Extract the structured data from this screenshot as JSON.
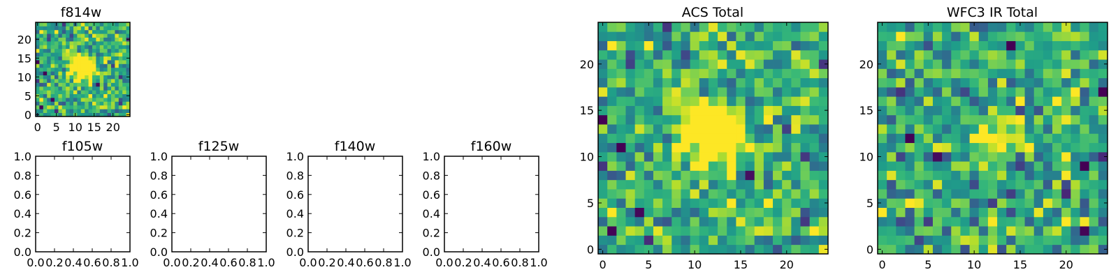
{
  "chart_data": [
    {
      "id": "f814w",
      "type": "heatmap",
      "title": "f814w",
      "xlim": [
        -0.5,
        24.5
      ],
      "ylim": [
        -0.5,
        24.5
      ],
      "xticks": [
        0,
        5,
        10,
        15,
        20
      ],
      "yticks": [
        0,
        5,
        10,
        15,
        20
      ],
      "xtick_labels": [
        "0",
        "5",
        "10",
        "15",
        "20"
      ],
      "ytick_labels": [
        "0",
        "5",
        "10",
        "15",
        "20"
      ],
      "grid_size": 25,
      "colormap": "viridis",
      "seed": 11,
      "source_center": [
        12,
        12.5
      ],
      "source_radius": 2.3,
      "source_amplitude": 1.0
    },
    {
      "id": "f105w",
      "type": "empty",
      "title": "f105w",
      "xlim": [
        0,
        1
      ],
      "ylim": [
        0,
        1
      ],
      "xticks": [
        0,
        0.2,
        0.4,
        0.6,
        0.8,
        1.0
      ],
      "yticks": [
        0,
        0.2,
        0.4,
        0.6,
        0.8,
        1.0
      ],
      "xtick_labels": [
        "0.0",
        "0.2",
        "0.4",
        "0.6",
        "0.8",
        "1.0"
      ],
      "ytick_labels": [
        "0.0",
        "0.2",
        "0.4",
        "0.6",
        "0.8",
        "1.0"
      ]
    },
    {
      "id": "f125w",
      "type": "empty",
      "title": "f125w",
      "xlim": [
        0,
        1
      ],
      "ylim": [
        0,
        1
      ],
      "xticks": [
        0,
        0.2,
        0.4,
        0.6,
        0.8,
        1.0
      ],
      "yticks": [
        0,
        0.2,
        0.4,
        0.6,
        0.8,
        1.0
      ],
      "xtick_labels": [
        "0.0",
        "0.2",
        "0.4",
        "0.6",
        "0.8",
        "1.0"
      ],
      "ytick_labels": [
        "0.0",
        "0.2",
        "0.4",
        "0.6",
        "0.8",
        "1.0"
      ]
    },
    {
      "id": "f140w",
      "type": "empty",
      "title": "f140w",
      "xlim": [
        0,
        1
      ],
      "ylim": [
        0,
        1
      ],
      "xticks": [
        0,
        0.2,
        0.4,
        0.6,
        0.8,
        1.0
      ],
      "yticks": [
        0,
        0.2,
        0.4,
        0.6,
        0.8,
        1.0
      ],
      "xtick_labels": [
        "0.0",
        "0.2",
        "0.4",
        "0.6",
        "0.8",
        "1.0"
      ],
      "ytick_labels": [
        "0.0",
        "0.2",
        "0.4",
        "0.6",
        "0.8",
        "1.0"
      ]
    },
    {
      "id": "f160w",
      "type": "empty",
      "title": "f160w",
      "xlim": [
        0,
        1
      ],
      "ylim": [
        0,
        1
      ],
      "xticks": [
        0,
        0.2,
        0.4,
        0.6,
        0.8,
        1.0
      ],
      "yticks": [
        0,
        0.2,
        0.4,
        0.6,
        0.8,
        1.0
      ],
      "xtick_labels": [
        "0.0",
        "0.2",
        "0.4",
        "0.6",
        "0.8",
        "1.0"
      ],
      "ytick_labels": [
        "0.0",
        "0.2",
        "0.4",
        "0.6",
        "0.8",
        "1.0"
      ]
    },
    {
      "id": "acs_total",
      "type": "heatmap",
      "title": "ACS Total",
      "xlim": [
        -0.5,
        24.5
      ],
      "ylim": [
        -0.5,
        24.5
      ],
      "xticks": [
        0,
        5,
        10,
        15,
        20
      ],
      "yticks": [
        0,
        5,
        10,
        15,
        20
      ],
      "xtick_labels": [
        "0",
        "5",
        "10",
        "15",
        "20"
      ],
      "ytick_labels": [
        "0",
        "5",
        "10",
        "15",
        "20"
      ],
      "grid_size": 25,
      "colormap": "viridis",
      "seed": 11,
      "source_center": [
        12,
        12.5
      ],
      "source_radius": 2.3,
      "source_amplitude": 1.0
    },
    {
      "id": "wfc3_ir_total",
      "type": "heatmap",
      "title": "WFC3 IR Total",
      "xlim": [
        -0.5,
        24.5
      ],
      "ylim": [
        -0.5,
        24.5
      ],
      "xticks": [
        0,
        5,
        10,
        15,
        20
      ],
      "yticks": [
        0,
        5,
        10,
        15,
        20
      ],
      "xtick_labels": [
        "0",
        "5",
        "10",
        "15",
        "20"
      ],
      "ytick_labels": [
        "0",
        "5",
        "10",
        "15",
        "20"
      ],
      "grid_size": 25,
      "colormap": "viridis",
      "seed": 29,
      "source_center": [
        12.5,
        11.5
      ],
      "source_radius": 1.5,
      "source_amplitude": 0.45
    }
  ]
}
